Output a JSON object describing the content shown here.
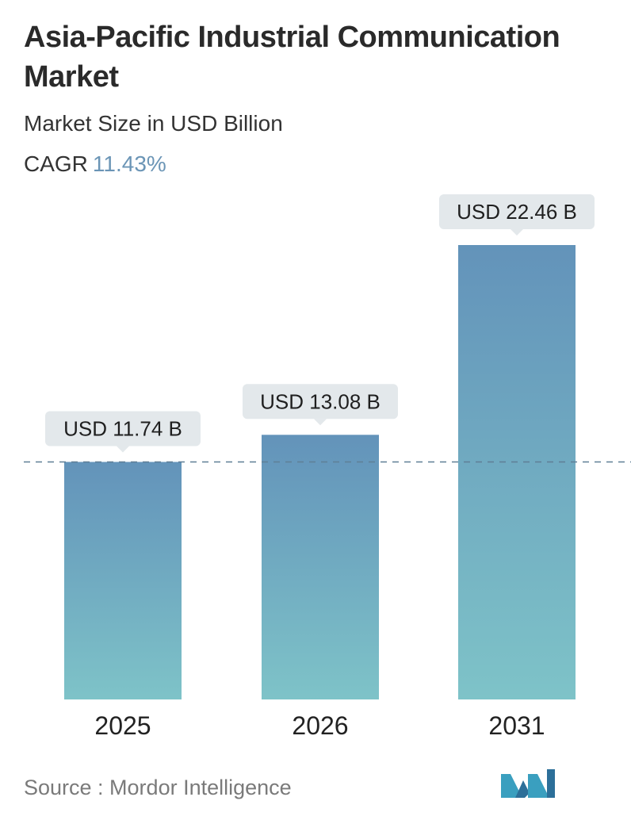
{
  "header": {
    "title": "Asia-Pacific Industrial Communication Market",
    "subtitle": "Market Size in USD Billion",
    "cagr_label": "CAGR",
    "cagr_value": "11.43%"
  },
  "chart_data": {
    "type": "bar",
    "categories": [
      "2025",
      "2026",
      "2031"
    ],
    "values": [
      11.74,
      13.08,
      22.46
    ],
    "data_labels": [
      "USD 11.74 B",
      "USD 13.08 B",
      "USD 22.46 B"
    ],
    "reference_line": {
      "value": 11.74,
      "style": "dashed"
    },
    "ylim": [
      0,
      22.46
    ],
    "grid": false,
    "colors": {
      "bar_top": "#6393ba",
      "bar_bottom": "#7ec3c8",
      "label_bg": "#e3e8eb",
      "reference_line": "#5f7f96"
    }
  },
  "footer": {
    "source": "Source :  Mordor Intelligence",
    "logo": "mordor-intelligence-logo"
  }
}
